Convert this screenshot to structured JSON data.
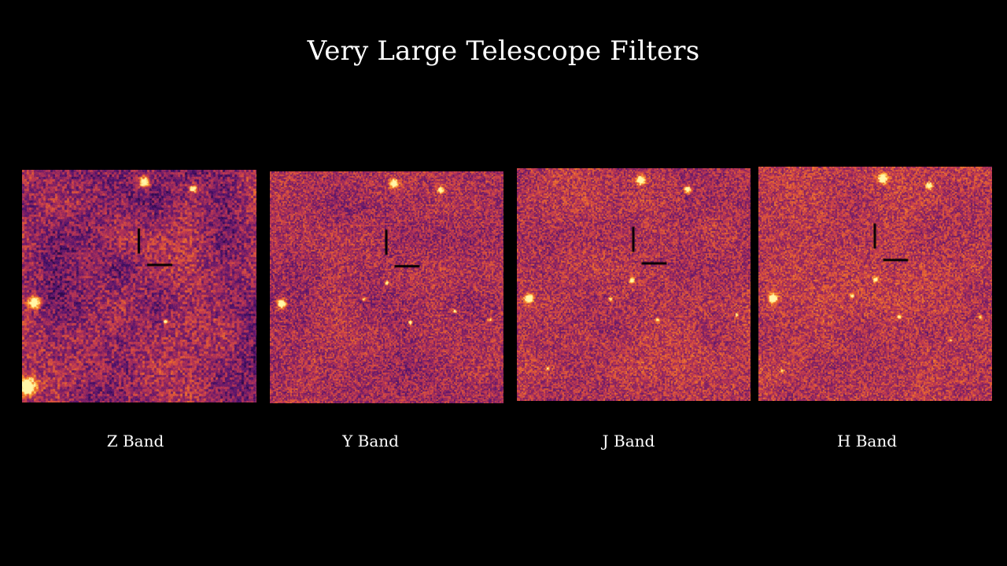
{
  "title": "Very Large Telescope Filters",
  "colors": {
    "background": "#000000",
    "text": "#ffffff",
    "noise_colormap": [
      "#1a0533",
      "#4b1270",
      "#8a2463",
      "#c43b4f",
      "#ec6a2b",
      "#ffb43a",
      "#fff6a8"
    ],
    "marker": "#000000"
  },
  "panels": [
    {
      "id": "z",
      "label": "Z Band"
    },
    {
      "id": "y",
      "label": "Y Band"
    },
    {
      "id": "j",
      "label": "J Band"
    },
    {
      "id": "h",
      "label": "H Band"
    }
  ]
}
